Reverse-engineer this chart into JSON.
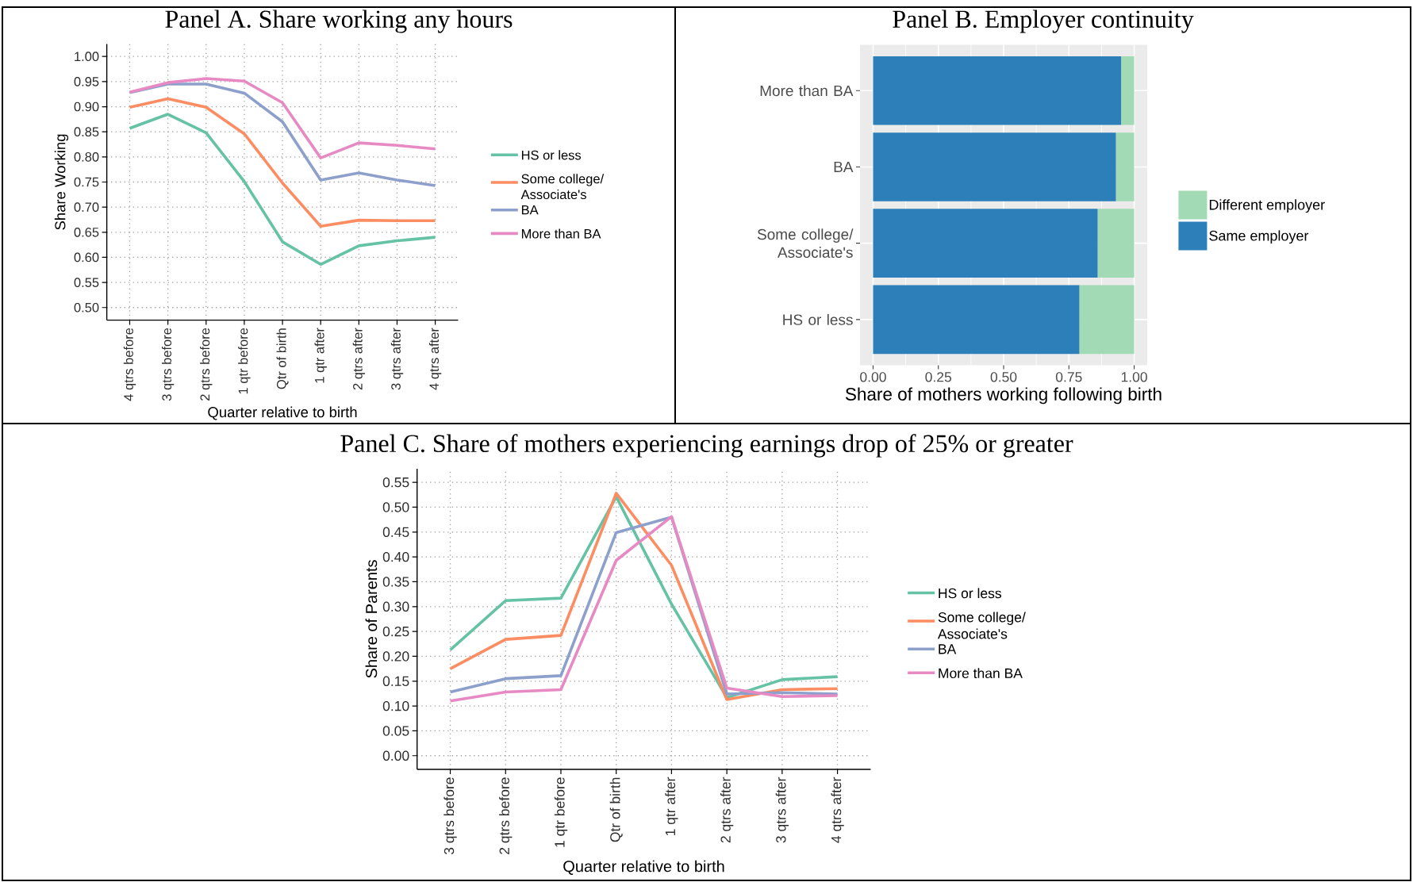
{
  "chart_data": [
    {
      "type": "line",
      "title": "Panel A. Share working any hours",
      "xlabel": "Quarter relative to birth",
      "ylabel": "Share Working",
      "categories": [
        "4 qtrs before",
        "3 qtrs before",
        "2 qtrs before",
        "1 qtr before",
        "Qtr of birth",
        "1 qtr after",
        "2 qtrs after",
        "3 qtrs after",
        "4 qtrs after"
      ],
      "series": [
        {
          "name": "HS or less",
          "color": "#66c2a5",
          "values": [
            0.857,
            0.885,
            0.848,
            0.751,
            0.631,
            0.586,
            0.623,
            0.633,
            0.64
          ]
        },
        {
          "name": "Some college/ Associate's",
          "color": "#fc8d62",
          "values": [
            0.899,
            0.916,
            0.899,
            0.846,
            0.748,
            0.662,
            0.674,
            0.673,
            0.673
          ]
        },
        {
          "name": "BA",
          "color": "#8da0cb",
          "values": [
            0.928,
            0.945,
            0.945,
            0.927,
            0.87,
            0.754,
            0.768,
            0.754,
            0.743
          ]
        },
        {
          "name": "More than BA",
          "color": "#e78ac3",
          "values": [
            0.929,
            0.948,
            0.956,
            0.951,
            0.908,
            0.798,
            0.828,
            0.823,
            0.816
          ]
        }
      ],
      "ylim": [
        0.475,
        1.025
      ],
      "yticks": [
        {
          "value": 0.5,
          "label": "0.50"
        },
        {
          "value": 0.55,
          "label": "0.55"
        },
        {
          "value": 0.6,
          "label": "0.60"
        },
        {
          "value": 0.65,
          "label": "0.65"
        },
        {
          "value": 0.7,
          "label": "0.70"
        },
        {
          "value": 0.75,
          "label": "0.75"
        },
        {
          "value": 0.8,
          "label": "0.80"
        },
        {
          "value": 0.85,
          "label": "0.85"
        },
        {
          "value": 0.9,
          "label": "0.90"
        },
        {
          "value": 0.95,
          "label": "0.95"
        },
        {
          "value": 1.0,
          "label": "1.00"
        }
      ],
      "grid": true,
      "legend": "right"
    },
    {
      "type": "bar",
      "orientation": "horizontal",
      "stacked": true,
      "title": "Panel B. Employer continuity",
      "xlabel": "Share of mothers working following birth",
      "categories": [
        "More than BA",
        "BA",
        "Some college/ Associate's",
        "HS or less"
      ],
      "series": [
        {
          "name": "Same employer",
          "color": "#2c7fb8",
          "values": [
            0.95,
            0.93,
            0.86,
            0.79
          ]
        },
        {
          "name": "Different employer",
          "color": "#a1dab4",
          "values": [
            0.05,
            0.07,
            0.14,
            0.21
          ]
        }
      ],
      "xlim": [
        -0.05,
        1.05
      ],
      "xticks": [
        {
          "value": 0,
          "label": "0.00"
        },
        {
          "value": 0.25,
          "label": "0.25"
        },
        {
          "value": 0.5,
          "label": "0.50"
        },
        {
          "value": 0.75,
          "label": "0.75"
        },
        {
          "value": 1.0,
          "label": "1.00"
        }
      ],
      "grid": true,
      "legend": "right"
    },
    {
      "type": "line",
      "title": "Panel C. Share of mothers experiencing earnings drop of 25% or greater",
      "xlabel": "Quarter relative to birth",
      "ylabel": "Share of Parents",
      "categories": [
        "3 qtrs before",
        "2 qtrs before",
        "1 qtr before",
        "Qtr of birth",
        "1 qtr after",
        "2 qtrs after",
        "3 qtrs after",
        "4 qtrs after"
      ],
      "series": [
        {
          "name": "HS or less",
          "color": "#66c2a5",
          "values": [
            0.213,
            0.312,
            0.317,
            0.521,
            0.305,
            0.117,
            0.153,
            0.159
          ]
        },
        {
          "name": "Some college/ Associate's",
          "color": "#fc8d62",
          "values": [
            0.175,
            0.234,
            0.242,
            0.528,
            0.383,
            0.113,
            0.133,
            0.135
          ]
        },
        {
          "name": "BA",
          "color": "#8da0cb",
          "values": [
            0.128,
            0.155,
            0.161,
            0.449,
            0.48,
            0.124,
            0.127,
            0.124
          ]
        },
        {
          "name": "More than BA",
          "color": "#e78ac3",
          "values": [
            0.11,
            0.128,
            0.133,
            0.393,
            0.481,
            0.136,
            0.119,
            0.121
          ]
        }
      ],
      "ylim": [
        -0.0275,
        0.5775
      ],
      "yticks": [
        {
          "value": 0,
          "label": "0.00"
        },
        {
          "value": 0.05,
          "label": "0.05"
        },
        {
          "value": 0.1,
          "label": "0.10"
        },
        {
          "value": 0.15,
          "label": "0.15"
        },
        {
          "value": 0.2,
          "label": "0.20"
        },
        {
          "value": 0.25,
          "label": "0.25"
        },
        {
          "value": 0.3,
          "label": "0.30"
        },
        {
          "value": 0.35,
          "label": "0.35"
        },
        {
          "value": 0.4,
          "label": "0.40"
        },
        {
          "value": 0.45,
          "label": "0.45"
        },
        {
          "value": 0.5,
          "label": "0.50"
        },
        {
          "value": 0.55,
          "label": "0.55"
        }
      ],
      "grid": true,
      "legend": "right"
    }
  ]
}
